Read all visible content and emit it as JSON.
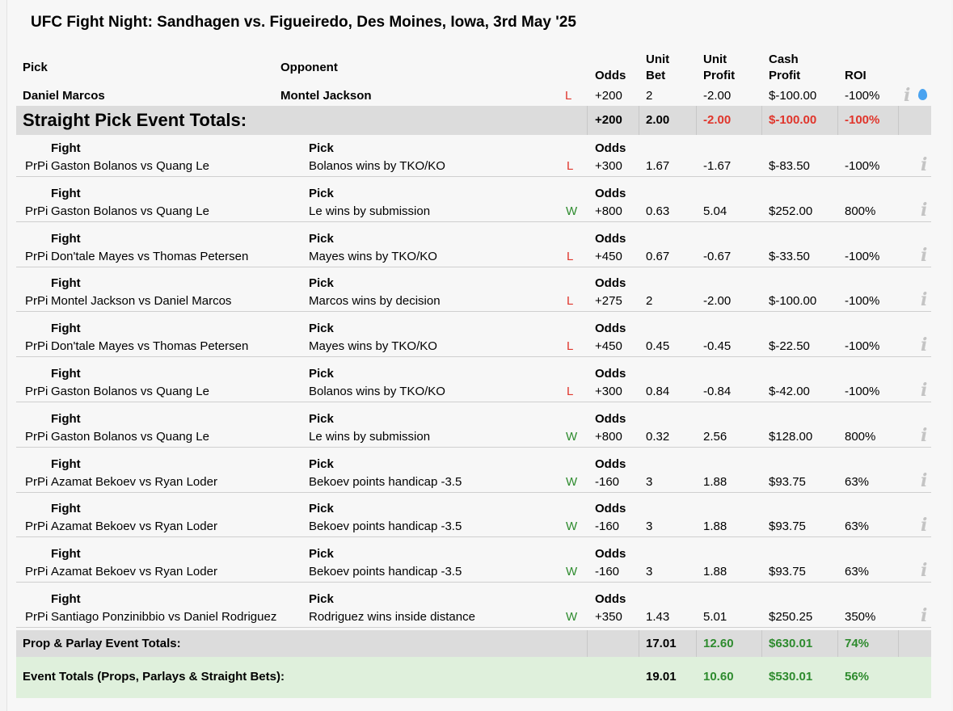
{
  "title": "UFC Fight Night: Sandhagen vs. Figueiredo, Des Moines, Iowa, 3rd May '25",
  "straight_header": {
    "pick": "Pick",
    "opponent": "Opponent",
    "odds": "Odds",
    "unit_bet_1": "Unit",
    "unit_bet_2": "Bet",
    "unit_profit_1": "Unit",
    "unit_profit_2": "Profit",
    "cash_profit_1": "Cash",
    "cash_profit_2": "Profit",
    "roi": "ROI"
  },
  "straight_pick": {
    "pick": "Daniel Marcos",
    "opponent": "Montel Jackson",
    "result": "L",
    "odds": "+200",
    "unit_bet": "2",
    "unit_profit": "-2.00",
    "cash_profit": "$-100.00",
    "roi": "-100%"
  },
  "straight_totals": {
    "label": "Straight Pick Event Totals:",
    "odds": "+200",
    "unit_bet": "2.00",
    "unit_profit": "-2.00",
    "cash_profit": "$-100.00",
    "roi": "-100%"
  },
  "prop_header": {
    "fight": "Fight",
    "pick": "Pick",
    "odds": "Odds"
  },
  "prop_picks": [
    {
      "prefix": "PrPi",
      "fight": "Gaston Bolanos vs Quang Le",
      "pick": "Bolanos wins by TKO/KO",
      "result": "L",
      "odds": "+300",
      "unit_bet": "1.67",
      "unit_profit": "-1.67",
      "cash_profit": "$-83.50",
      "roi": "-100%"
    },
    {
      "prefix": "PrPi",
      "fight": "Gaston Bolanos vs Quang Le",
      "pick": "Le wins by submission",
      "result": "W",
      "odds": "+800",
      "unit_bet": "0.63",
      "unit_profit": "5.04",
      "cash_profit": "$252.00",
      "roi": "800%"
    },
    {
      "prefix": "PrPi",
      "fight": "Don'tale Mayes vs Thomas Petersen",
      "pick": "Mayes wins by TKO/KO",
      "result": "L",
      "odds": "+450",
      "unit_bet": "0.67",
      "unit_profit": "-0.67",
      "cash_profit": "$-33.50",
      "roi": "-100%"
    },
    {
      "prefix": "PrPi",
      "fight": "Montel Jackson vs Daniel Marcos",
      "pick": "Marcos wins by decision",
      "result": "L",
      "odds": "+275",
      "unit_bet": "2",
      "unit_profit": "-2.00",
      "cash_profit": "$-100.00",
      "roi": "-100%"
    },
    {
      "prefix": "PrPi",
      "fight": "Don'tale Mayes vs Thomas Petersen",
      "pick": "Mayes wins by TKO/KO",
      "result": "L",
      "odds": "+450",
      "unit_bet": "0.45",
      "unit_profit": "-0.45",
      "cash_profit": "$-22.50",
      "roi": "-100%"
    },
    {
      "prefix": "PrPi",
      "fight": "Gaston Bolanos vs Quang Le",
      "pick": "Bolanos wins by TKO/KO",
      "result": "L",
      "odds": "+300",
      "unit_bet": "0.84",
      "unit_profit": "-0.84",
      "cash_profit": "$-42.00",
      "roi": "-100%"
    },
    {
      "prefix": "PrPi",
      "fight": "Gaston Bolanos vs Quang Le",
      "pick": "Le wins by submission",
      "result": "W",
      "odds": "+800",
      "unit_bet": "0.32",
      "unit_profit": "2.56",
      "cash_profit": "$128.00",
      "roi": "800%"
    },
    {
      "prefix": "PrPi",
      "fight": "Azamat Bekoev vs Ryan Loder",
      "pick": "Bekoev points handicap -3.5",
      "result": "W",
      "odds": "-160",
      "unit_bet": "3",
      "unit_profit": "1.88",
      "cash_profit": "$93.75",
      "roi": "63%"
    },
    {
      "prefix": "PrPi",
      "fight": "Azamat Bekoev vs Ryan Loder",
      "pick": "Bekoev points handicap -3.5",
      "result": "W",
      "odds": "-160",
      "unit_bet": "3",
      "unit_profit": "1.88",
      "cash_profit": "$93.75",
      "roi": "63%"
    },
    {
      "prefix": "PrPi",
      "fight": "Azamat Bekoev vs Ryan Loder",
      "pick": "Bekoev points handicap -3.5",
      "result": "W",
      "odds": "-160",
      "unit_bet": "3",
      "unit_profit": "1.88",
      "cash_profit": "$93.75",
      "roi": "63%"
    },
    {
      "prefix": "PrPi",
      "fight": "Santiago Ponzinibbio vs Daniel Rodriguez",
      "pick": "Rodriguez wins inside distance",
      "result": "W",
      "odds": "+350",
      "unit_bet": "1.43",
      "unit_profit": "5.01",
      "cash_profit": "$250.25",
      "roi": "350%"
    }
  ],
  "prop_totals": {
    "label": "Prop & Parlay Event Totals:",
    "unit_bet": "17.01",
    "unit_profit": "12.60",
    "cash_profit": "$630.01",
    "roi": "74%"
  },
  "event_totals": {
    "label": "Event Totals (Props, Parlays & Straight Bets):",
    "unit_bet": "19.01",
    "unit_profit": "10.60",
    "cash_profit": "$530.01",
    "roi": "56%"
  },
  "icons": {
    "info": "i",
    "info_icon_name": "info-icon",
    "drop_icon_name": "water-drop-icon"
  },
  "colors": {
    "loss": "#e0352b",
    "win": "#2e8b2e",
    "band_gray": "#dcdcdc",
    "band_green": "#dff0dc"
  }
}
